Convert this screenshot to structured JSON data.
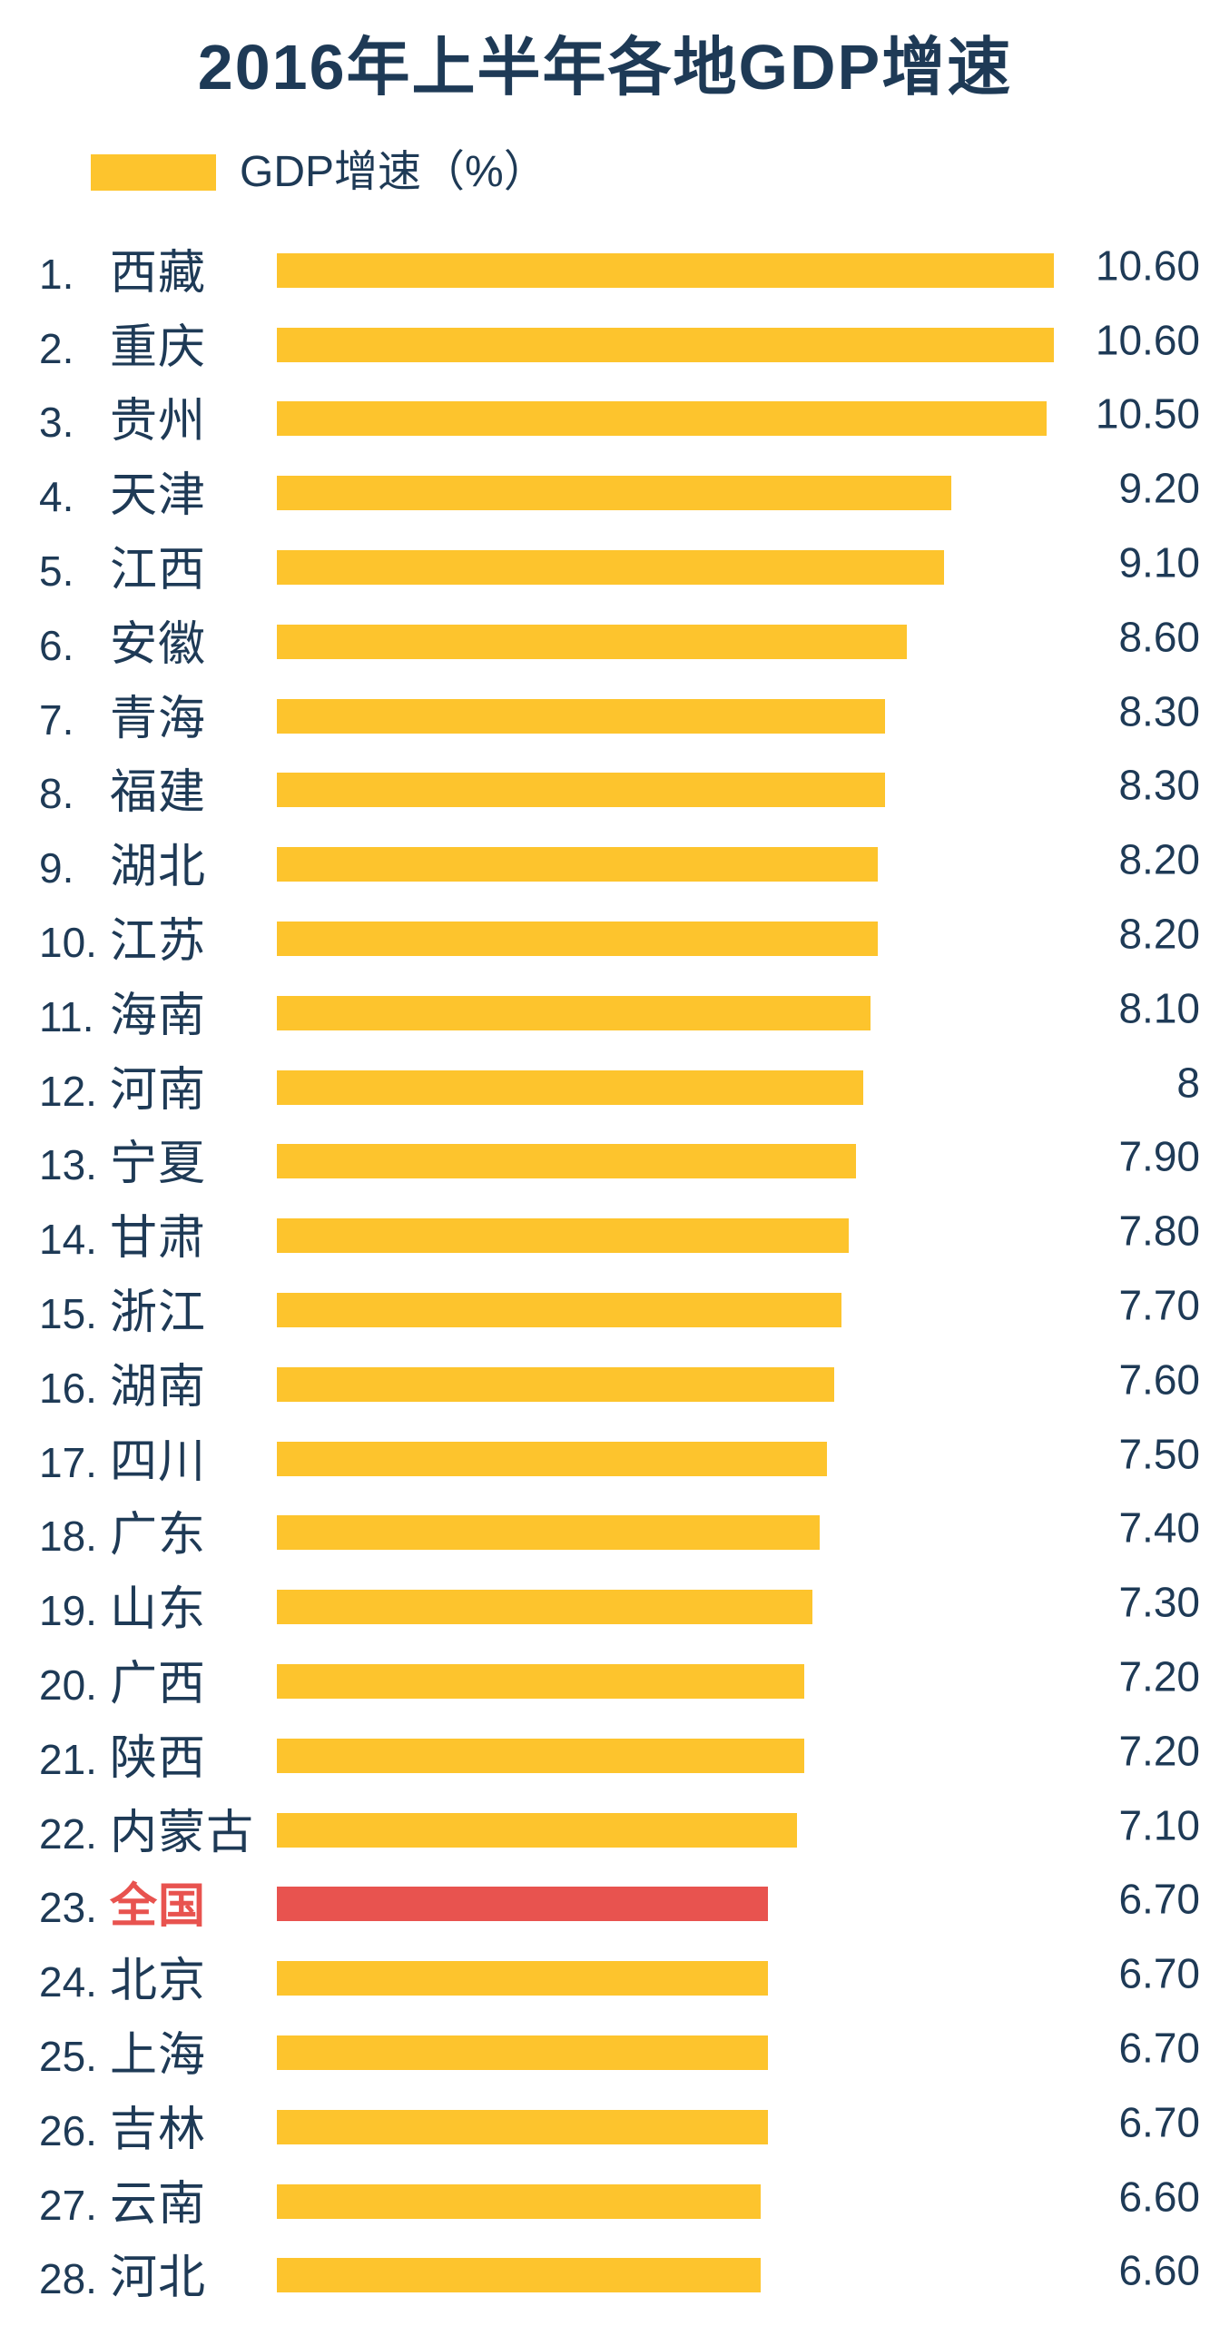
{
  "title": "2016年上半年各地GDP增速",
  "legend": {
    "label": "GDP增速（%）"
  },
  "colors": {
    "bar_yellow": "#FDC42D",
    "highlight_red": "#E8534F",
    "text_navy": "#1E3A56"
  },
  "chart_data": {
    "type": "bar",
    "orientation": "horizontal",
    "title": "2016年上半年各地GDP增速",
    "legend": "GDP增速（%）",
    "value_axis_min": 0,
    "value_axis_max": 10.6,
    "grid": false,
    "legend_position": "top-left",
    "highlight_category": "全国",
    "rows": [
      {
        "rank": "1.",
        "name": "西藏",
        "value": 10.6,
        "label": "10.60",
        "highlight": false
      },
      {
        "rank": "2.",
        "name": "重庆",
        "value": 10.6,
        "label": "10.60",
        "highlight": false
      },
      {
        "rank": "3.",
        "name": "贵州",
        "value": 10.5,
        "label": "10.50",
        "highlight": false
      },
      {
        "rank": "4.",
        "name": "天津",
        "value": 9.2,
        "label": "9.20",
        "highlight": false
      },
      {
        "rank": "5.",
        "name": "江西",
        "value": 9.1,
        "label": "9.10",
        "highlight": false
      },
      {
        "rank": "6.",
        "name": "安徽",
        "value": 8.6,
        "label": "8.60",
        "highlight": false
      },
      {
        "rank": "7.",
        "name": "青海",
        "value": 8.3,
        "label": "8.30",
        "highlight": false
      },
      {
        "rank": "8.",
        "name": "福建",
        "value": 8.3,
        "label": "8.30",
        "highlight": false
      },
      {
        "rank": "9.",
        "name": "湖北",
        "value": 8.2,
        "label": "8.20",
        "highlight": false
      },
      {
        "rank": "10.",
        "name": "江苏",
        "value": 8.2,
        "label": "8.20",
        "highlight": false
      },
      {
        "rank": "11.",
        "name": "海南",
        "value": 8.1,
        "label": "8.10",
        "highlight": false
      },
      {
        "rank": "12.",
        "name": "河南",
        "value": 8.0,
        "label": "8",
        "highlight": false
      },
      {
        "rank": "13.",
        "name": "宁夏",
        "value": 7.9,
        "label": "7.90",
        "highlight": false
      },
      {
        "rank": "14.",
        "name": "甘肃",
        "value": 7.8,
        "label": "7.80",
        "highlight": false
      },
      {
        "rank": "15.",
        "name": "浙江",
        "value": 7.7,
        "label": "7.70",
        "highlight": false
      },
      {
        "rank": "16.",
        "name": "湖南",
        "value": 7.6,
        "label": "7.60",
        "highlight": false
      },
      {
        "rank": "17.",
        "name": "四川",
        "value": 7.5,
        "label": "7.50",
        "highlight": false
      },
      {
        "rank": "18.",
        "name": "广东",
        "value": 7.4,
        "label": "7.40",
        "highlight": false
      },
      {
        "rank": "19.",
        "name": "山东",
        "value": 7.3,
        "label": "7.30",
        "highlight": false
      },
      {
        "rank": "20.",
        "name": "广西",
        "value": 7.2,
        "label": "7.20",
        "highlight": false
      },
      {
        "rank": "21.",
        "name": "陕西",
        "value": 7.2,
        "label": "7.20",
        "highlight": false
      },
      {
        "rank": "22.",
        "name": "内蒙古",
        "value": 7.1,
        "label": "7.10",
        "highlight": false
      },
      {
        "rank": "23.",
        "name": "全国",
        "value": 6.7,
        "label": "6.70",
        "highlight": true
      },
      {
        "rank": "24.",
        "name": "北京",
        "value": 6.7,
        "label": "6.70",
        "highlight": false
      },
      {
        "rank": "25.",
        "name": "上海",
        "value": 6.7,
        "label": "6.70",
        "highlight": false
      },
      {
        "rank": "26.",
        "name": "吉林",
        "value": 6.7,
        "label": "6.70",
        "highlight": false
      },
      {
        "rank": "27.",
        "name": "云南",
        "value": 6.6,
        "label": "6.60",
        "highlight": false
      },
      {
        "rank": "28.",
        "name": "河北",
        "value": 6.6,
        "label": "6.60",
        "highlight": false
      }
    ]
  }
}
